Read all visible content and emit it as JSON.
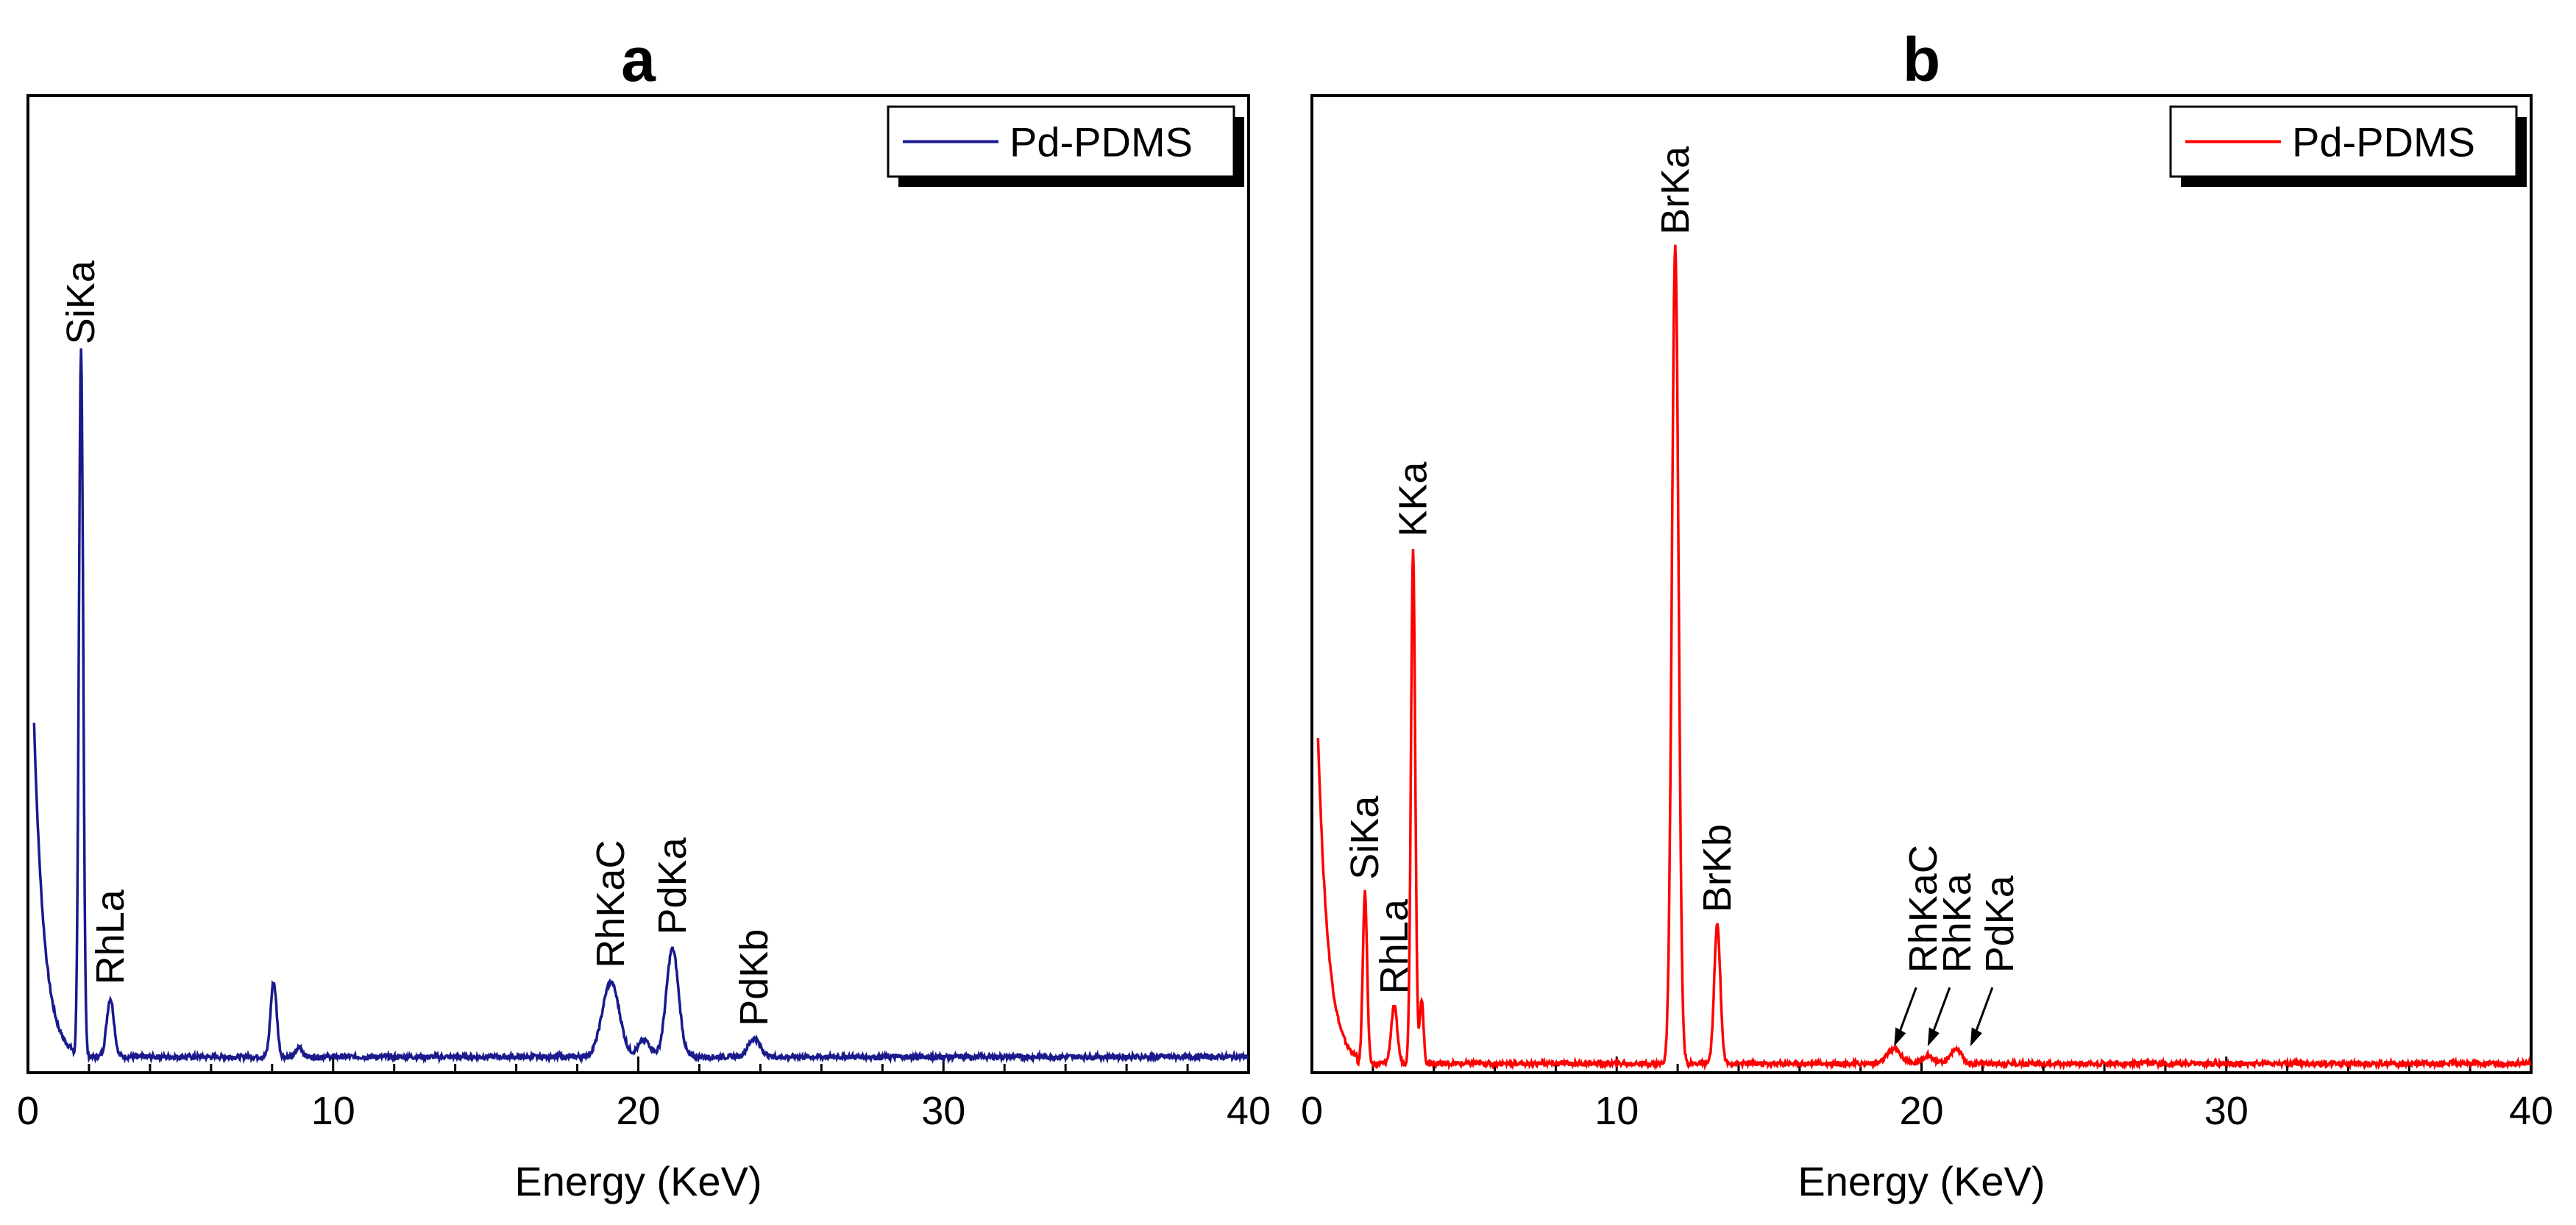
{
  "chart_data": [
    {
      "type": "line",
      "panel": "a",
      "title": "a",
      "xlabel": "Energy (KeV)",
      "ylabel": "",
      "xlim": [
        0,
        40
      ],
      "ylim": [
        0,
        100
      ],
      "xticks": [
        0,
        10,
        20,
        30,
        40
      ],
      "color": "#1a1a8c",
      "legend": {
        "label": "Pd-PDMS",
        "position": "top-right"
      },
      "series": [
        {
          "name": "Pd-PDMS",
          "baseline": 1.2,
          "peaks": [
            {
              "x": 1.74,
              "height": 85,
              "width": 0.07
            },
            {
              "x": 2.7,
              "height": 7,
              "width": 0.12
            },
            {
              "x": 8.05,
              "height": 9,
              "width": 0.1
            },
            {
              "x": 8.9,
              "height": 1.2,
              "width": 0.1
            },
            {
              "x": 19.1,
              "height": 9,
              "width": 0.28
            },
            {
              "x": 20.2,
              "height": 2,
              "width": 0.2
            },
            {
              "x": 21.12,
              "height": 13,
              "width": 0.2
            },
            {
              "x": 23.8,
              "height": 2.2,
              "width": 0.2
            }
          ]
        }
      ],
      "annotations": [
        {
          "text": "SiKa",
          "x": 1.74,
          "y": 86
        },
        {
          "text": "RhLa",
          "x": 2.7,
          "y": 9
        },
        {
          "text": "RhKaC",
          "x": 19.1,
          "y": 11
        },
        {
          "text": "PdKa",
          "x": 21.12,
          "y": 15
        },
        {
          "text": "PdKb",
          "x": 23.8,
          "y": 4
        }
      ]
    },
    {
      "type": "line",
      "panel": "b",
      "title": "b",
      "xlabel": "Energy (KeV)",
      "ylabel": "",
      "xlim": [
        0,
        40
      ],
      "ylim": [
        0,
        100
      ],
      "xticks": [
        0,
        10,
        20,
        30,
        40
      ],
      "color": "#ff0000",
      "legend": {
        "label": "Pd-PDMS",
        "position": "top-right"
      },
      "series": [
        {
          "name": "Pd-PDMS",
          "baseline": 0.4,
          "peaks": [
            {
              "x": 1.74,
              "height": 21,
              "width": 0.07
            },
            {
              "x": 2.7,
              "height": 7,
              "width": 0.1
            },
            {
              "x": 3.32,
              "height": 63,
              "width": 0.07
            },
            {
              "x": 3.6,
              "height": 8,
              "width": 0.06
            },
            {
              "x": 11.92,
              "height": 100,
              "width": 0.11
            },
            {
              "x": 13.3,
              "height": 17,
              "width": 0.1
            },
            {
              "x": 19.1,
              "height": 1.8,
              "width": 0.22
            },
            {
              "x": 20.2,
              "height": 1.0,
              "width": 0.18
            },
            {
              "x": 21.12,
              "height": 1.8,
              "width": 0.18
            }
          ]
        }
      ],
      "annotations": [
        {
          "text": "SiKa",
          "x": 1.74,
          "y": 22
        },
        {
          "text": "RhLa",
          "x": 2.7,
          "y": 8
        },
        {
          "text": "KKa",
          "x": 3.32,
          "y": 64
        },
        {
          "text": "BrKa",
          "x": 11.92,
          "y": 101
        },
        {
          "text": "BrKb",
          "x": 13.3,
          "y": 18
        },
        {
          "text": "RhKaC",
          "x": 19.1,
          "y": 8,
          "arrow": true
        },
        {
          "text": "RhKa",
          "x": 20.2,
          "y": 8,
          "arrow": true
        },
        {
          "text": "PdKa",
          "x": 21.6,
          "y": 8,
          "arrow": true
        }
      ]
    }
  ]
}
